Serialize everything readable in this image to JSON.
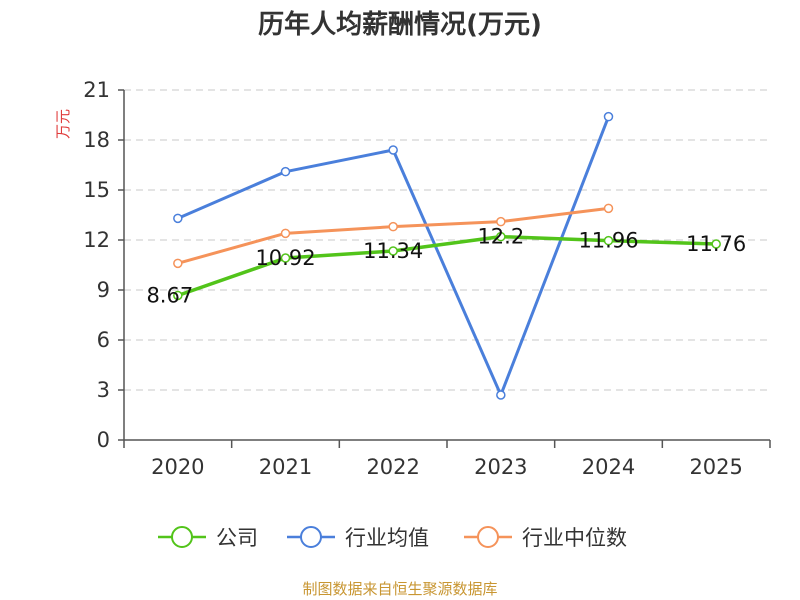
{
  "chart_data": {
    "type": "line",
    "title": "历年人均薪酬情况(万元)",
    "ylabel": "万元",
    "xlabel": "",
    "categories": [
      "2020",
      "2021",
      "2022",
      "2023",
      "2024",
      "2025"
    ],
    "ylim": [
      0,
      21
    ],
    "yticks": [
      "0",
      "3",
      "6",
      "9",
      "12",
      "15",
      "18",
      "21"
    ],
    "grid": true,
    "legend_position": "bottom",
    "series": [
      {
        "name": "公司",
        "color": "#52c41a",
        "values": [
          8.67,
          10.92,
          11.34,
          12.2,
          11.96,
          11.76
        ],
        "data_labels": [
          "8.67",
          "10.92",
          "11.34",
          "12.2",
          "11.96",
          "11.76"
        ]
      },
      {
        "name": "行业均值",
        "color": "#4a7fdb",
        "values": [
          13.3,
          16.1,
          17.4,
          2.7,
          19.4,
          null
        ]
      },
      {
        "name": "行业中位数",
        "color": "#f5935a",
        "values": [
          10.6,
          12.4,
          12.8,
          13.1,
          13.9,
          null
        ]
      }
    ]
  },
  "source": "制图数据来自恒生聚源数据库"
}
